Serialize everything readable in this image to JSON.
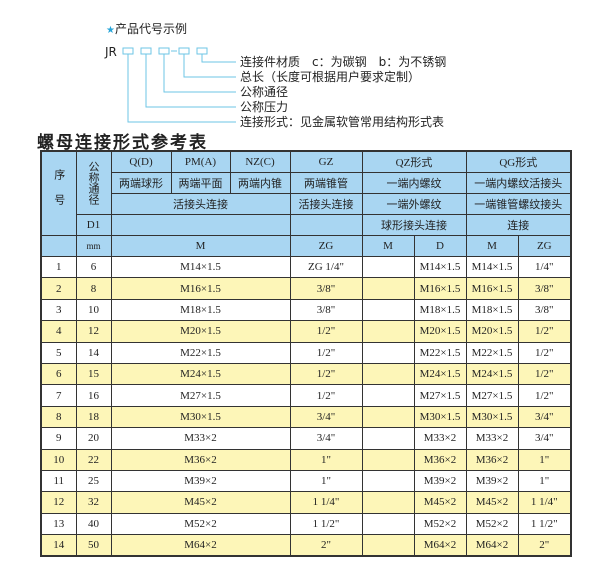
{
  "diagram": {
    "heading": "产品代号示例",
    "star_color": "#2aa6d9",
    "code_prefix": "JR",
    "line_color": "#6ec6e6",
    "labels": [
      "连接件材质　c：为碳钢　b：为不锈钢",
      "总长（长度可根据用户要求定制）",
      "公称通径",
      "公称压力",
      "连接形式：见金属软管常用结构形式表"
    ]
  },
  "title": "螺母连接形式参考表",
  "header": {
    "seq": "序号",
    "nominal": "公称通径",
    "q": "Q(D)",
    "pm": "PM(A)",
    "nz": "NZ(C)",
    "gz": "GZ",
    "qz": "QZ形式",
    "qg": "QG形式",
    "q_desc": "两端球形",
    "pm_desc": "两端平面",
    "nz_desc": "两端内锥",
    "gz_desc": "两端锥管",
    "qz_desc": "一端内螺纹",
    "qg_desc": "一端内螺纹活接头",
    "mnz_conn": "活接头连接",
    "gz_conn": "活接头连接",
    "qz_conn": "一端外螺纹",
    "qg_conn": "一端锥管螺纹接头",
    "d1": "D1",
    "qz_conn2": "球形接头连接",
    "qg_conn2": "连接",
    "mm": "mm",
    "m": "M",
    "zg": "ZG",
    "qz_m": "M",
    "qz_d": "D",
    "qg_m": "M",
    "qg_zg": "ZG"
  },
  "colors": {
    "header_bg": "#a9d6f2",
    "alt_row_bg": "#fdf6b8"
  },
  "rows": [
    {
      "no": "1",
      "dn": "6",
      "m": "M14×1.5",
      "zg": "ZG 1/4\"",
      "qz_m": "",
      "qz_d": "M14×1.5",
      "qg_m": "M14×1.5",
      "qg_zg": "1/4\""
    },
    {
      "no": "2",
      "dn": "8",
      "m": "M16×1.5",
      "zg": "3/8\"",
      "qz_m": "",
      "qz_d": "M16×1.5",
      "qg_m": "M16×1.5",
      "qg_zg": "3/8\""
    },
    {
      "no": "3",
      "dn": "10",
      "m": "M18×1.5",
      "zg": "3/8\"",
      "qz_m": "",
      "qz_d": "M18×1.5",
      "qg_m": "M18×1.5",
      "qg_zg": "3/8\""
    },
    {
      "no": "4",
      "dn": "12",
      "m": "M20×1.5",
      "zg": "1/2\"",
      "qz_m": "",
      "qz_d": "M20×1.5",
      "qg_m": "M20×1.5",
      "qg_zg": "1/2\""
    },
    {
      "no": "5",
      "dn": "14",
      "m": "M22×1.5",
      "zg": "1/2\"",
      "qz_m": "",
      "qz_d": "M22×1.5",
      "qg_m": "M22×1.5",
      "qg_zg": "1/2\""
    },
    {
      "no": "6",
      "dn": "15",
      "m": "M24×1.5",
      "zg": "1/2\"",
      "qz_m": "",
      "qz_d": "M24×1.5",
      "qg_m": "M24×1.5",
      "qg_zg": "1/2\""
    },
    {
      "no": "7",
      "dn": "16",
      "m": "M27×1.5",
      "zg": "1/2\"",
      "qz_m": "",
      "qz_d": "M27×1.5",
      "qg_m": "M27×1.5",
      "qg_zg": "1/2\""
    },
    {
      "no": "8",
      "dn": "18",
      "m": "M30×1.5",
      "zg": "3/4\"",
      "qz_m": "",
      "qz_d": "M30×1.5",
      "qg_m": "M30×1.5",
      "qg_zg": "3/4\""
    },
    {
      "no": "9",
      "dn": "20",
      "m": "M33×2",
      "zg": "3/4\"",
      "qz_m": "",
      "qz_d": "M33×2",
      "qg_m": "M33×2",
      "qg_zg": "3/4\""
    },
    {
      "no": "10",
      "dn": "22",
      "m": "M36×2",
      "zg": "1\"",
      "qz_m": "",
      "qz_d": "M36×2",
      "qg_m": "M36×2",
      "qg_zg": "1\""
    },
    {
      "no": "11",
      "dn": "25",
      "m": "M39×2",
      "zg": "1\"",
      "qz_m": "",
      "qz_d": "M39×2",
      "qg_m": "M39×2",
      "qg_zg": "1\""
    },
    {
      "no": "12",
      "dn": "32",
      "m": "M45×2",
      "zg": "1 1/4\"",
      "qz_m": "",
      "qz_d": "M45×2",
      "qg_m": "M45×2",
      "qg_zg": "1 1/4\""
    },
    {
      "no": "13",
      "dn": "40",
      "m": "M52×2",
      "zg": "1 1/2\"",
      "qz_m": "",
      "qz_d": "M52×2",
      "qg_m": "M52×2",
      "qg_zg": "1 1/2\""
    },
    {
      "no": "14",
      "dn": "50",
      "m": "M64×2",
      "zg": "2\"",
      "qz_m": "",
      "qz_d": "M64×2",
      "qg_m": "M64×2",
      "qg_zg": "2\""
    }
  ]
}
